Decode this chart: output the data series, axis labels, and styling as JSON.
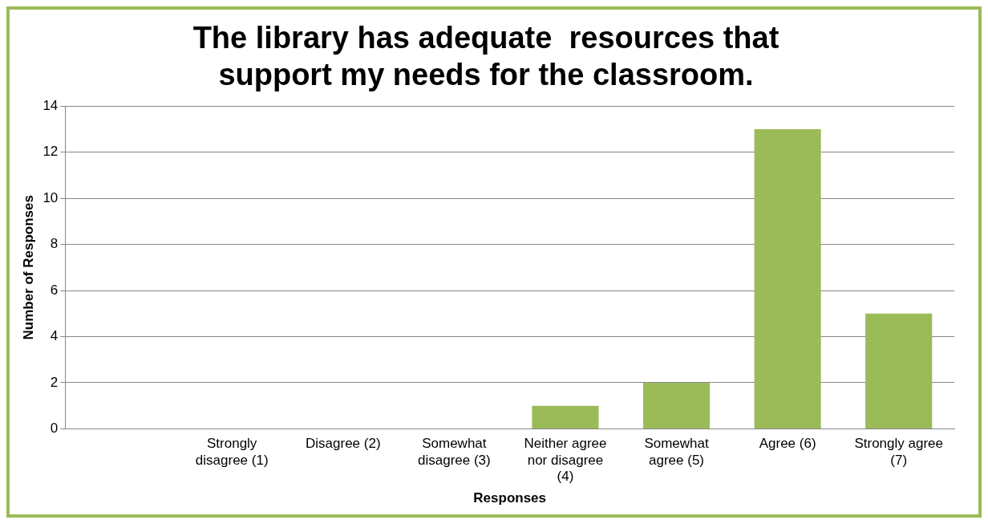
{
  "chart_data": {
    "type": "bar",
    "title": "The library has adequate  resources that support my needs for the classroom.",
    "xlabel": "Responses",
    "ylabel": "Number of Responses",
    "categories": [
      null,
      "Strongly disagree (1)",
      "Disagree (2)",
      "Somewhat disagree (3)",
      "Neither agree nor disagree (4)",
      "Somewhat agree (5)",
      "Agree (6)",
      "Strongly agree (7)"
    ],
    "values": [
      null,
      0,
      0,
      0,
      1,
      2,
      13,
      5
    ],
    "color": "#9bbb59",
    "ylim": [
      0,
      14
    ],
    "yticks": [
      0,
      2,
      4,
      6,
      8,
      10,
      12,
      14
    ],
    "grid": "y",
    "legend": false
  }
}
